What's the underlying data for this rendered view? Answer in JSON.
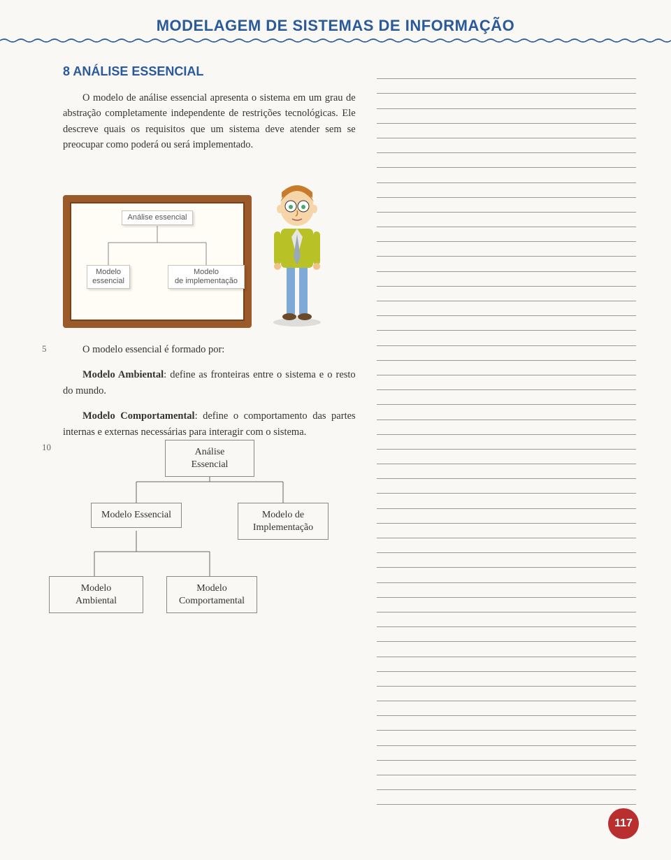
{
  "header": {
    "title": "MODELAGEM DE SISTEMAS DE INFORMAÇÃO"
  },
  "section": {
    "number_title": "8 ANÁLISE ESSENCIAL",
    "para1": "O modelo de análise essencial apresenta o sistema em um grau de abstração completamente independente de restrições tecnológicas. Ele descreve quais os requisitos que um sistema deve atender sem se preocupar como poderá ou será implementado.",
    "para2_lead": "O modelo essencial é formado por:",
    "ambiental_label": "Modelo Ambiental",
    "ambiental_text": ": define as fronteiras entre o sistema e o resto do mundo.",
    "comport_label": "Modelo Comportamental",
    "comport_text": ": define o comportamento das partes internas e externas necessárias para interagir com o sistema.",
    "line_marker_5": "5",
    "line_marker_10": "10"
  },
  "board": {
    "root": "Análise essencial",
    "left": "Modelo\nessencial",
    "right": "Modelo\nde implementação"
  },
  "hierarchy": {
    "root": "Análise Essencial",
    "l1_left": "Modelo Essencial",
    "l1_right": "Modelo de\nImplementação",
    "l2_left": "Modelo Ambiental",
    "l2_right": "Modelo\nComportamental"
  },
  "colors": {
    "accent_blue": "#2a5a9a",
    "board_frame": "#9a5a2a",
    "badge_red": "#b92f2f",
    "rule_gray": "#999999"
  },
  "page_number": "117",
  "notes": {
    "line_count": 50
  }
}
